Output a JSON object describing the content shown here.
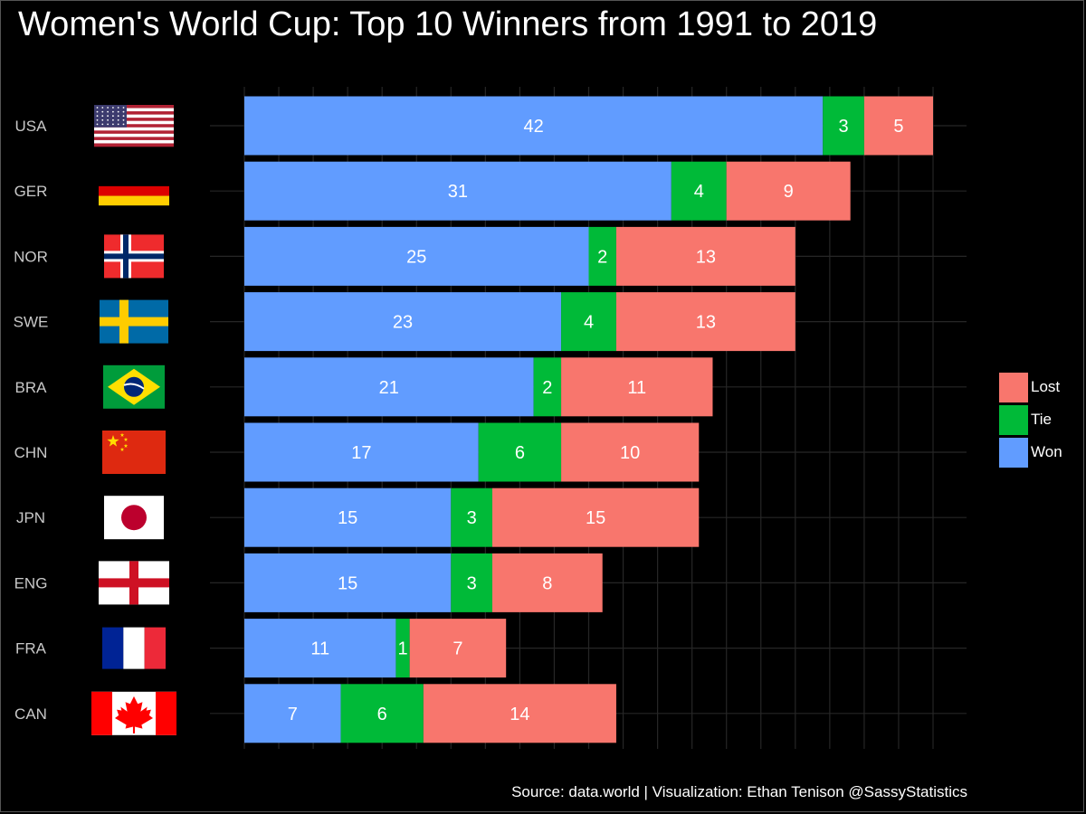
{
  "title": "Women's World Cup: Top 10 Winners from 1991 to 2019",
  "caption": "Source: data.world  | Visualization: Ethan Tenison @SassyStatistics",
  "colors": {
    "Won": "#619CFF",
    "Tie": "#00BA38",
    "Lost": "#F8766D",
    "grid": "#262626"
  },
  "legend": [
    {
      "name": "Lost",
      "color": "#F8766D"
    },
    {
      "name": "Tie",
      "color": "#00BA38"
    },
    {
      "name": "Won",
      "color": "#619CFF"
    }
  ],
  "chart_data": {
    "type": "bar",
    "orientation": "horizontal",
    "stacked": true,
    "title": "Women's World Cup: Top 10 Winners from 1991 to 2019",
    "xlabel": "",
    "ylabel": "",
    "xlim": [
      0,
      52
    ],
    "grid": true,
    "legend_position": "right",
    "categories": [
      "USA",
      "GER",
      "NOR",
      "SWE",
      "BRA",
      "CHN",
      "JPN",
      "ENG",
      "FRA",
      "CAN"
    ],
    "flags": [
      "flag-usa-icon",
      "flag-germany-icon",
      "flag-norway-icon",
      "flag-sweden-icon",
      "flag-brazil-icon",
      "flag-china-icon",
      "flag-japan-icon",
      "flag-england-icon",
      "flag-france-icon",
      "flag-canada-icon"
    ],
    "series": [
      {
        "name": "Won",
        "values": [
          42,
          31,
          25,
          23,
          21,
          17,
          15,
          15,
          11,
          7
        ]
      },
      {
        "name": "Tie",
        "values": [
          3,
          4,
          2,
          4,
          2,
          6,
          3,
          3,
          1,
          6
        ]
      },
      {
        "name": "Lost",
        "values": [
          5,
          9,
          13,
          13,
          11,
          10,
          15,
          8,
          7,
          14
        ]
      }
    ]
  }
}
